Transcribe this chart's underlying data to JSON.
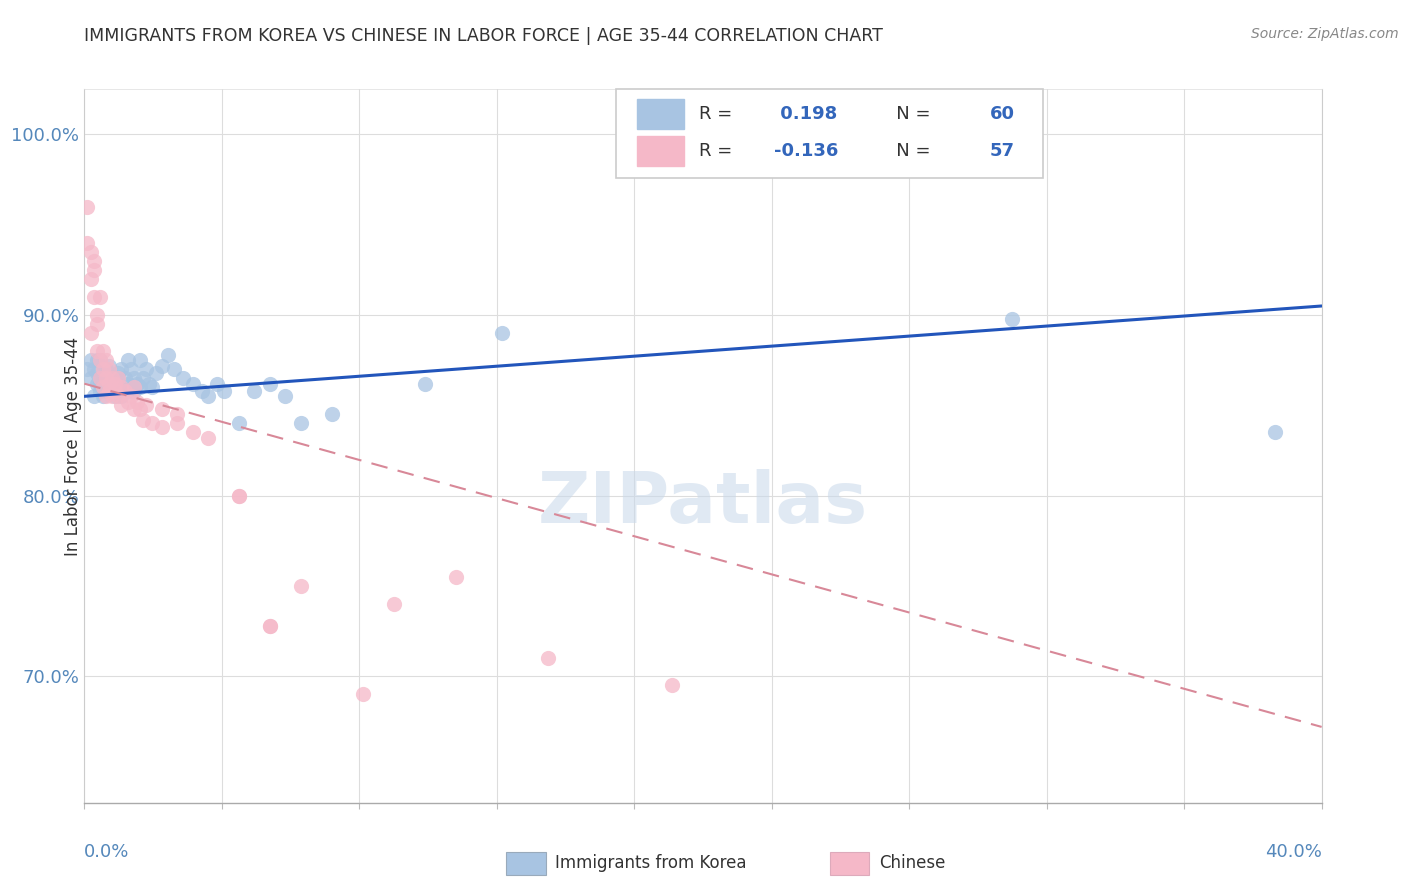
{
  "title": "IMMIGRANTS FROM KOREA VS CHINESE IN LABOR FORCE | AGE 35-44 CORRELATION CHART",
  "source": "Source: ZipAtlas.com",
  "ylabel": "In Labor Force | Age 35-44",
  "xlim": [
    0.0,
    0.4
  ],
  "ylim": [
    0.63,
    1.025
  ],
  "yticks": [
    0.7,
    0.8,
    0.9,
    1.0
  ],
  "ytick_labels": [
    "70.0%",
    "80.0%",
    "90.0%",
    "100.0%"
  ],
  "korea_R": 0.198,
  "korea_N": 60,
  "chinese_R": -0.136,
  "chinese_N": 57,
  "korea_color": "#a8c4e2",
  "korean_line_color": "#2255bb",
  "chinese_color": "#f5b8c8",
  "chinese_line_color": "#d88898",
  "watermark": "ZIPatlas",
  "korea_trend_x": [
    0.0,
    0.4
  ],
  "korea_trend_y": [
    0.855,
    0.905
  ],
  "chinese_trend_x": [
    0.0,
    0.4
  ],
  "chinese_trend_y": [
    0.862,
    0.672
  ],
  "korea_scatter_x": [
    0.001,
    0.002,
    0.002,
    0.003,
    0.003,
    0.004,
    0.004,
    0.004,
    0.005,
    0.005,
    0.005,
    0.006,
    0.006,
    0.007,
    0.007,
    0.007,
    0.008,
    0.008,
    0.009,
    0.009,
    0.01,
    0.01,
    0.011,
    0.011,
    0.012,
    0.012,
    0.013,
    0.014,
    0.014,
    0.015,
    0.015,
    0.016,
    0.016,
    0.017,
    0.018,
    0.018,
    0.019,
    0.02,
    0.021,
    0.022,
    0.023,
    0.025,
    0.027,
    0.029,
    0.032,
    0.035,
    0.038,
    0.04,
    0.043,
    0.045,
    0.05,
    0.055,
    0.06,
    0.065,
    0.07,
    0.08,
    0.11,
    0.135,
    0.3,
    0.385
  ],
  "korea_scatter_y": [
    0.87,
    0.865,
    0.875,
    0.855,
    0.87,
    0.862,
    0.868,
    0.875,
    0.858,
    0.862,
    0.875,
    0.86,
    0.855,
    0.865,
    0.87,
    0.858,
    0.865,
    0.872,
    0.86,
    0.865,
    0.855,
    0.862,
    0.86,
    0.868,
    0.855,
    0.87,
    0.865,
    0.875,
    0.862,
    0.858,
    0.87,
    0.865,
    0.858,
    0.862,
    0.86,
    0.875,
    0.865,
    0.87,
    0.862,
    0.86,
    0.868,
    0.872,
    0.878,
    0.87,
    0.865,
    0.862,
    0.858,
    0.855,
    0.862,
    0.858,
    0.84,
    0.858,
    0.862,
    0.855,
    0.84,
    0.845,
    0.862,
    0.89,
    0.898,
    0.835
  ],
  "chinese_scatter_x": [
    0.001,
    0.001,
    0.002,
    0.002,
    0.002,
    0.003,
    0.003,
    0.003,
    0.004,
    0.004,
    0.004,
    0.005,
    0.005,
    0.005,
    0.006,
    0.006,
    0.006,
    0.007,
    0.007,
    0.007,
    0.008,
    0.008,
    0.008,
    0.009,
    0.009,
    0.01,
    0.01,
    0.011,
    0.011,
    0.012,
    0.012,
    0.013,
    0.014,
    0.015,
    0.016,
    0.016,
    0.017,
    0.018,
    0.019,
    0.02,
    0.022,
    0.025,
    0.03,
    0.035,
    0.04,
    0.05,
    0.06,
    0.07,
    0.09,
    0.1,
    0.12,
    0.15,
    0.19,
    0.025,
    0.03,
    0.05,
    0.06
  ],
  "chinese_scatter_y": [
    0.96,
    0.94,
    0.935,
    0.92,
    0.89,
    0.93,
    0.925,
    0.91,
    0.9,
    0.895,
    0.88,
    0.91,
    0.875,
    0.865,
    0.88,
    0.87,
    0.86,
    0.875,
    0.865,
    0.855,
    0.87,
    0.862,
    0.858,
    0.865,
    0.855,
    0.862,
    0.858,
    0.855,
    0.865,
    0.86,
    0.85,
    0.858,
    0.852,
    0.855,
    0.848,
    0.86,
    0.852,
    0.848,
    0.842,
    0.85,
    0.84,
    0.838,
    0.84,
    0.835,
    0.832,
    0.8,
    0.728,
    0.75,
    0.69,
    0.74,
    0.755,
    0.71,
    0.695,
    0.848,
    0.845,
    0.8,
    0.728
  ]
}
